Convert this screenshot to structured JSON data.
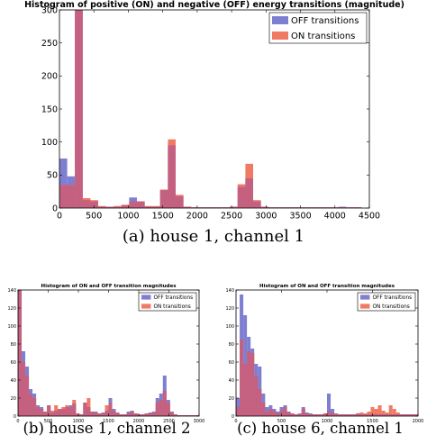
{
  "chart_data": [
    {
      "id": "a",
      "type": "bar",
      "caption": "(a) house 1, channel 1",
      "title": "Histogram of positive (ON) and negative (OFF) energy transitions (magnitude)",
      "xlim": [
        0,
        4500
      ],
      "ylim": [
        0,
        300
      ],
      "xticks": [
        0,
        500,
        1000,
        1500,
        2000,
        2500,
        3000,
        3500,
        4000,
        4500
      ],
      "yticks": [
        0,
        50,
        100,
        150,
        200,
        250,
        300
      ],
      "bin_width": 112.5,
      "colors": {
        "off": "#7f7fd2",
        "on": "#f07a64",
        "overlap": "#c46080"
      },
      "legend_position": "upper-right",
      "series": [
        {
          "name": "OFF transitions",
          "x": [
            0,
            112.5,
            225,
            337.5,
            450,
            562.5,
            675,
            787.5,
            900,
            1012.5,
            1125,
            1237.5,
            1350,
            1462.5,
            1575,
            1687.5,
            1800,
            1912.5,
            2025,
            2137.5,
            2250,
            2362.5,
            2475,
            2587.5,
            2700,
            2812.5,
            2925,
            3037.5,
            3150,
            3262.5,
            3375,
            3487.5,
            3600,
            3712.5,
            3825,
            3937.5,
            4050,
            4162.5,
            4275
          ],
          "values": [
            75,
            48,
            300,
            12,
            10,
            2,
            2,
            2,
            4,
            16,
            10,
            2,
            2,
            27,
            95,
            18,
            2,
            1,
            1,
            1,
            1,
            1,
            2,
            32,
            45,
            10,
            2,
            1,
            1,
            1,
            1,
            1,
            1,
            1,
            1,
            1,
            2,
            1,
            1
          ]
        },
        {
          "name": "ON transitions",
          "x": [
            0,
            112.5,
            225,
            337.5,
            450,
            562.5,
            675,
            787.5,
            900,
            1012.5,
            1125,
            1237.5,
            1350,
            1462.5,
            1575,
            1687.5,
            1800,
            1912.5,
            2025,
            2137.5,
            2250,
            2362.5,
            2475,
            2587.5,
            2700,
            2812.5,
            2925,
            3037.5,
            3150,
            3262.5,
            3375,
            3487.5,
            3600,
            3712.5,
            3825,
            3937.5,
            4050,
            4162.5,
            4275
          ],
          "values": [
            35,
            35,
            300,
            15,
            12,
            3,
            2,
            3,
            5,
            10,
            10,
            3,
            3,
            28,
            104,
            20,
            2,
            1,
            1,
            1,
            1,
            1,
            2,
            36,
            67,
            12,
            2,
            1,
            1,
            1,
            1,
            1,
            1,
            1,
            1,
            1,
            1,
            1,
            1
          ]
        }
      ]
    },
    {
      "id": "b",
      "type": "bar",
      "caption": "(b) house 1, channel 2",
      "title": "Histogram of ON and OFF transition magnitudes",
      "xlim": [
        0,
        3000
      ],
      "ylim": [
        0,
        140
      ],
      "xticks": [
        0,
        500,
        1000,
        1500,
        2000,
        2500,
        3000
      ],
      "yticks": [
        0,
        20,
        40,
        60,
        80,
        100,
        120,
        140
      ],
      "bin_width": 60,
      "colors": {
        "off": "#7f7fd2",
        "on": "#f07a64",
        "overlap": "#c46080"
      },
      "legend_position": "upper-right",
      "series": [
        {
          "name": "OFF transitions",
          "x": [
            0,
            60,
            120,
            180,
            240,
            300,
            360,
            420,
            480,
            540,
            600,
            660,
            720,
            780,
            840,
            900,
            960,
            1020,
            1080,
            1140,
            1200,
            1260,
            1320,
            1380,
            1440,
            1500,
            1560,
            1620,
            1680,
            1740,
            1800,
            1860,
            1920,
            1980,
            2040,
            2100,
            2160,
            2220,
            2280,
            2340,
            2400,
            2460,
            2520,
            2580,
            2640,
            2700,
            2760,
            2820,
            2880,
            2940
          ],
          "values": [
            140,
            72,
            55,
            30,
            25,
            12,
            10,
            5,
            12,
            4,
            6,
            8,
            8,
            10,
            12,
            14,
            2,
            2,
            15,
            10,
            5,
            5,
            3,
            4,
            6,
            20,
            8,
            4,
            2,
            2,
            5,
            6,
            3,
            2,
            2,
            3,
            4,
            5,
            20,
            25,
            45,
            18,
            5,
            2,
            1,
            1,
            1,
            1,
            1,
            1
          ]
        },
        {
          "name": "ON transitions",
          "x": [
            0,
            60,
            120,
            180,
            240,
            300,
            360,
            420,
            480,
            540,
            600,
            660,
            720,
            780,
            840,
            900,
            960,
            1020,
            1080,
            1140,
            1200,
            1260,
            1320,
            1380,
            1440,
            1500,
            1560,
            1620,
            1680,
            1740,
            1800,
            1860,
            1920,
            1980,
            2040,
            2100,
            2160,
            2220,
            2280,
            2340,
            2400,
            2460,
            2520,
            2580,
            2640,
            2700,
            2760,
            2820,
            2880,
            2940
          ],
          "values": [
            140,
            60,
            45,
            25,
            20,
            10,
            8,
            5,
            12,
            6,
            12,
            8,
            10,
            12,
            10,
            18,
            3,
            2,
            15,
            20,
            5,
            4,
            3,
            3,
            12,
            15,
            6,
            3,
            2,
            2,
            3,
            5,
            3,
            2,
            2,
            3,
            3,
            4,
            15,
            18,
            28,
            15,
            4,
            2,
            1,
            1,
            1,
            1,
            1,
            1
          ]
        }
      ]
    },
    {
      "id": "c",
      "type": "bar",
      "caption": "(c) house 6, channel 1",
      "title": "Histogram of ON and OFF transition magnitudes",
      "xlim": [
        0,
        2000
      ],
      "ylim": [
        0,
        140
      ],
      "xticks": [
        0,
        500,
        1000,
        1500,
        2000
      ],
      "yticks": [
        0,
        20,
        40,
        60,
        80,
        100,
        120,
        140
      ],
      "bin_width": 40,
      "colors": {
        "off": "#7f7fd2",
        "on": "#f07a64",
        "overlap": "#c46080"
      },
      "legend_position": "upper-right",
      "series": [
        {
          "name": "OFF transitions",
          "x": [
            0,
            40,
            80,
            120,
            160,
            200,
            240,
            280,
            320,
            360,
            400,
            440,
            480,
            520,
            560,
            600,
            640,
            680,
            720,
            760,
            800,
            840,
            880,
            920,
            960,
            1000,
            1040,
            1080,
            1120,
            1160,
            1200,
            1240,
            1280,
            1320,
            1360,
            1400,
            1440,
            1480,
            1520,
            1560,
            1600,
            1640,
            1680,
            1720,
            1760,
            1800,
            1840,
            1880,
            1920,
            1960
          ],
          "values": [
            20,
            135,
            112,
            88,
            75,
            58,
            55,
            25,
            10,
            12,
            8,
            5,
            10,
            12,
            5,
            3,
            2,
            3,
            10,
            4,
            3,
            2,
            2,
            2,
            3,
            25,
            8,
            3,
            2,
            2,
            2,
            2,
            2,
            3,
            2,
            2,
            2,
            2,
            2,
            2,
            2,
            2,
            2,
            2,
            2,
            2,
            2,
            2,
            2,
            2
          ]
        },
        {
          "name": "ON transitions",
          "x": [
            0,
            40,
            80,
            120,
            160,
            200,
            240,
            280,
            320,
            360,
            400,
            440,
            480,
            520,
            560,
            600,
            640,
            680,
            720,
            760,
            800,
            840,
            880,
            920,
            960,
            1000,
            1040,
            1080,
            1120,
            1160,
            1200,
            1240,
            1280,
            1320,
            1360,
            1400,
            1440,
            1480,
            1520,
            1560,
            1600,
            1640,
            1680,
            1720,
            1760,
            1800,
            1840,
            1880,
            1920,
            1960
          ],
          "values": [
            10,
            85,
            58,
            72,
            70,
            45,
            30,
            15,
            5,
            8,
            6,
            3,
            6,
            10,
            4,
            3,
            2,
            2,
            8,
            3,
            2,
            2,
            2,
            2,
            3,
            5,
            4,
            2,
            2,
            2,
            2,
            2,
            2,
            3,
            4,
            3,
            5,
            10,
            8,
            12,
            6,
            4,
            12,
            8,
            4,
            2,
            2,
            2,
            2,
            2
          ]
        }
      ]
    }
  ]
}
